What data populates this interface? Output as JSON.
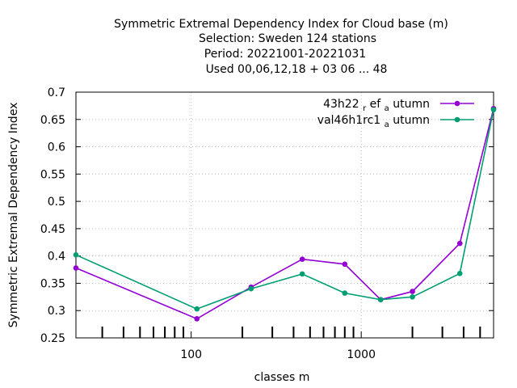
{
  "chart_data": {
    "type": "line",
    "title_lines": [
      "Symmetric Extremal Dependency Index  for Cloud base (m)",
      "Selection: Sweden    124 stations",
      "Period: 20221001-20221031",
      "Used  00,06,12,18  + 03 06 ... 48"
    ],
    "xlabel": "classes m",
    "ylabel": "Symmetric Extremal Dependency Index",
    "x_scale": "log",
    "xlim": [
      21,
      6000
    ],
    "ylim": [
      0.25,
      0.7
    ],
    "x_ticks": [
      {
        "value": 100,
        "label": "100"
      },
      {
        "value": 1000,
        "label": "1000"
      }
    ],
    "y_ticks": [
      {
        "value": 0.25,
        "label": "0.25"
      },
      {
        "value": 0.3,
        "label": "0.3"
      },
      {
        "value": 0.35,
        "label": "0.35"
      },
      {
        "value": 0.4,
        "label": "0.4"
      },
      {
        "value": 0.45,
        "label": "0.45"
      },
      {
        "value": 0.5,
        "label": "0.5"
      },
      {
        "value": 0.55,
        "label": "0.55"
      },
      {
        "value": 0.6,
        "label": "0.6"
      },
      {
        "value": 0.65,
        "label": "0.65"
      },
      {
        "value": 0.7,
        "label": "0.7"
      }
    ],
    "grid": true,
    "legend_position": "top-right",
    "x": [
      21,
      108,
      225,
      450,
      800,
      1300,
      2000,
      3800,
      6000
    ],
    "series": [
      {
        "name_main": "43h22",
        "name_sub1": "r",
        "name_mid": "ef",
        "name_sub2": "a",
        "name_tail": "utumn",
        "color": "#9400d3",
        "values": [
          0.378,
          0.285,
          0.343,
          0.394,
          0.385,
          0.32,
          0.335,
          0.423,
          0.67
        ]
      },
      {
        "name_main": "val46h1rc1",
        "name_sub1": "",
        "name_mid": "",
        "name_sub2": "a",
        "name_tail": "utumn",
        "color": "#009e73",
        "values": [
          0.402,
          0.303,
          0.34,
          0.367,
          0.332,
          0.32,
          0.325,
          0.368,
          0.668
        ]
      }
    ]
  }
}
